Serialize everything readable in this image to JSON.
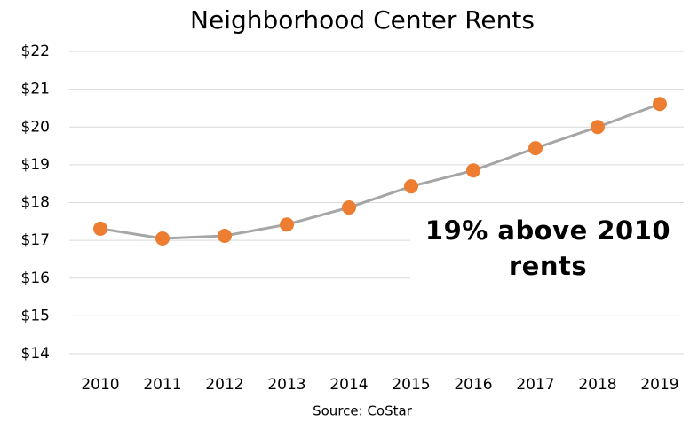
{
  "chart_data": {
    "type": "line",
    "title": "Neighborhood Center Rents",
    "categories": [
      "2010",
      "2011",
      "2012",
      "2013",
      "2014",
      "2015",
      "2016",
      "2017",
      "2018",
      "2019"
    ],
    "series": [
      {
        "name": "Rent",
        "line_color": "#a6a6a6",
        "color": "#ed7d31",
        "values": [
          17.31,
          17.05,
          17.12,
          17.42,
          17.87,
          18.43,
          18.85,
          19.44,
          20.0,
          20.61
        ]
      }
    ],
    "ylim": [
      14,
      22
    ],
    "yticks": [
      {
        "value": 14,
        "label": "$14"
      },
      {
        "value": 15,
        "label": "$15"
      },
      {
        "value": 16,
        "label": "$16"
      },
      {
        "value": 17,
        "label": "$17"
      },
      {
        "value": 18,
        "label": "$18"
      },
      {
        "value": 19,
        "label": "$19"
      },
      {
        "value": 20,
        "label": "$20"
      },
      {
        "value": 21,
        "label": "$21"
      },
      {
        "value": 22,
        "label": "$22"
      }
    ],
    "grid": true,
    "annotation": "19% above 2010 rents",
    "source": "Source: CoStar"
  }
}
